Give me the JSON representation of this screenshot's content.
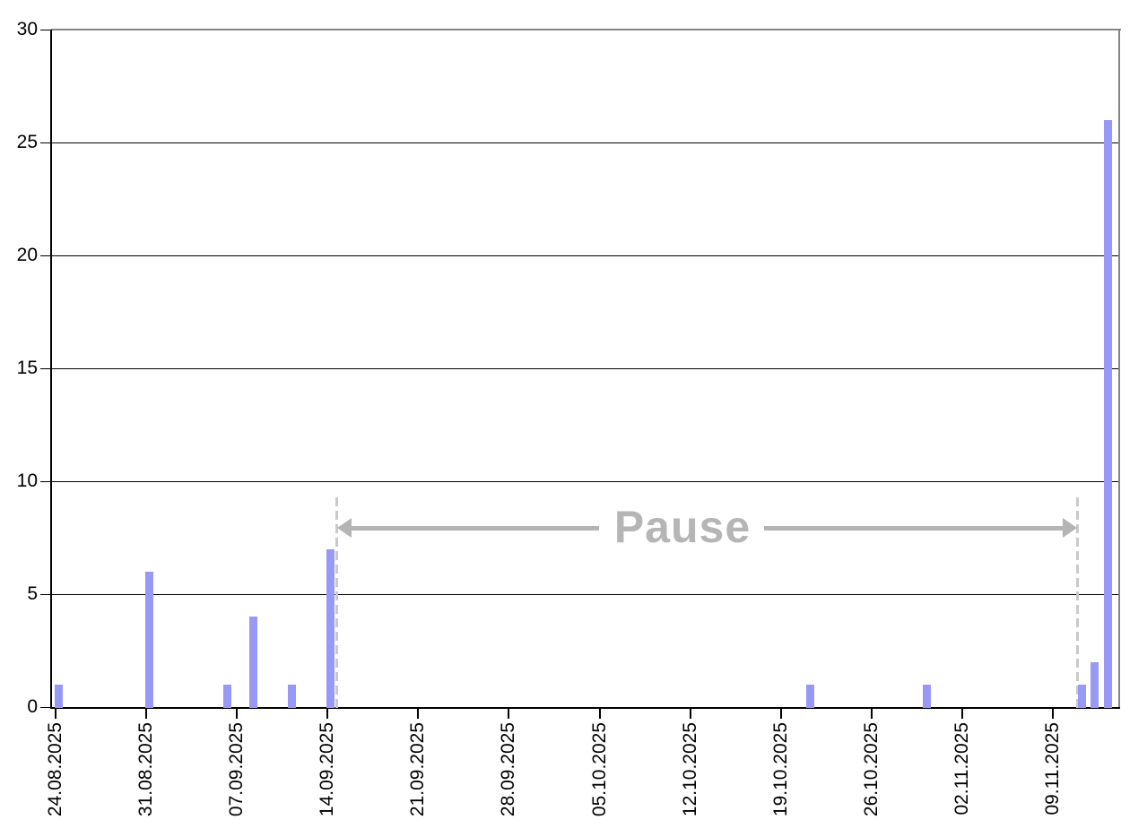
{
  "page": {
    "background": "#ffffff"
  },
  "chart_data": {
    "type": "bar",
    "title": "",
    "categories": [
      "24.08.2025",
      "31.08.2025",
      "06.09.2025",
      "08.09.2025",
      "11.09.2025",
      "14.09.2025",
      "21.10.2025",
      "30.10.2025",
      "11.11.2025",
      "12.11.2025",
      "13.11.2025"
    ],
    "values": [
      1,
      6,
      1,
      4,
      1,
      7,
      1,
      1,
      1,
      2,
      26
    ],
    "xtick_labels": [
      "24.08.2025",
      "31.08.2025",
      "07.09.2025",
      "14.09.2025",
      "21.09.2025",
      "28.09.2025",
      "05.10.2025",
      "12.10.2025",
      "19.10.2025",
      "26.10.2025",
      "02.11.2025",
      "09.11.2025"
    ],
    "yticks": [
      0,
      5,
      10,
      15,
      20,
      25,
      30
    ],
    "ytick_labels": [
      "0",
      "5",
      "10",
      "15",
      "20",
      "25",
      "30"
    ],
    "ylim": [
      0,
      30
    ],
    "grid": "horizontal",
    "legend": "none",
    "annotation": {
      "label": "Pause",
      "start": "15.09.2025",
      "end": "11.11.2025",
      "style": "double-headed-arrow-between-dashed-lines"
    },
    "colors": {
      "bar": "#9898f6",
      "gridline": "#000000",
      "axis": "#000000",
      "border": "#858585",
      "annotation": "#b4b4b4",
      "dashed_line": "#c9c9c9",
      "text": "#000000"
    }
  }
}
